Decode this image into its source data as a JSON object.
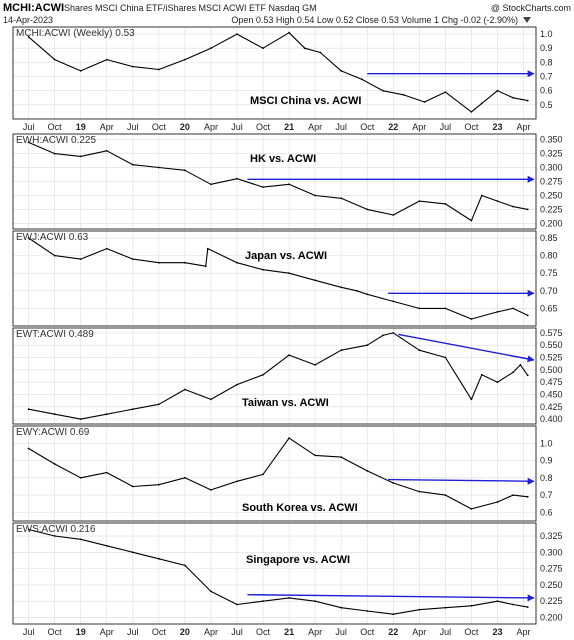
{
  "header": {
    "symbol": "MCHI:ACWI",
    "description": "iShares MSCI China ETF/iShares MSCI ACWI ETF  Nasdaq GM",
    "credit": "@ StockCharts.com",
    "date": "14-Apr-2023",
    "quote": "Open 0.53  High 0.54  Low 0.52  Close 0.53  Volume 1  Chg -0.02 (-2.90%)",
    "quote_icon": "chg-down-triangle-icon"
  },
  "colors": {
    "price_line": "#000000",
    "arrow": "#1f1fd8",
    "grid": "#dcdcdc",
    "frame": "#000000"
  },
  "chart_data": [
    {
      "type": "line",
      "label": "MCHI:ACWI (Weekly) 0.53",
      "annotation": "MSCI China vs. ACWI",
      "ylim": [
        0.4,
        1.05
      ],
      "yticks": [
        "0.5",
        "0.6",
        "0.7",
        "0.8",
        "0.9",
        "1.0"
      ],
      "xticks": [
        "Jul",
        "Oct",
        "19",
        "Apr",
        "Jul",
        "Oct",
        "20",
        "Apr",
        "Jul",
        "Oct",
        "21",
        "Apr",
        "Jul",
        "Oct",
        "22",
        "Apr",
        "Jul",
        "Oct",
        "23",
        "Apr"
      ],
      "x": [
        2018.5,
        2018.75,
        2019.0,
        2019.25,
        2019.5,
        2019.75,
        2020.0,
        2020.25,
        2020.5,
        2020.75,
        2021.0,
        2021.15,
        2021.3,
        2021.5,
        2021.7,
        2021.9,
        2022.1,
        2022.3,
        2022.5,
        2022.75,
        2022.85,
        2023.0,
        2023.15,
        2023.29
      ],
      "values": [
        0.98,
        0.82,
        0.74,
        0.82,
        0.77,
        0.75,
        0.82,
        0.9,
        1.0,
        0.9,
        1.01,
        0.9,
        0.87,
        0.74,
        0.68,
        0.6,
        0.57,
        0.52,
        0.59,
        0.45,
        0.51,
        0.6,
        0.55,
        0.53
      ],
      "trend_arrow": {
        "from": [
          2021.75,
          0.72
        ],
        "to": [
          2023.35,
          0.72
        ]
      }
    },
    {
      "type": "line",
      "label": "EWH:ACWI 0.225",
      "annotation": "HK vs. ACWI",
      "ylim": [
        0.19,
        0.36
      ],
      "yticks": [
        "0.200",
        "0.225",
        "0.250",
        "0.275",
        "0.300",
        "0.325",
        "0.350"
      ],
      "xticks": [],
      "x": [
        2018.5,
        2018.75,
        2019.0,
        2019.25,
        2019.5,
        2019.75,
        2020.0,
        2020.25,
        2020.5,
        2020.75,
        2021.0,
        2021.25,
        2021.5,
        2021.75,
        2022.0,
        2022.25,
        2022.5,
        2022.75,
        2022.85,
        2023.0,
        2023.15,
        2023.29
      ],
      "values": [
        0.345,
        0.325,
        0.32,
        0.33,
        0.305,
        0.3,
        0.295,
        0.27,
        0.28,
        0.265,
        0.27,
        0.25,
        0.245,
        0.225,
        0.215,
        0.24,
        0.235,
        0.205,
        0.25,
        0.24,
        0.23,
        0.225
      ],
      "trend_arrow": {
        "from": [
          2020.6,
          0.279
        ],
        "to": [
          2023.35,
          0.279
        ]
      }
    },
    {
      "type": "line",
      "label": "EWJ:ACWI 0.63",
      "annotation": "Japan vs. ACWI",
      "ylim": [
        0.6,
        0.87
      ],
      "yticks": [
        "0.65",
        "0.70",
        "0.75",
        "0.80",
        "0.85"
      ],
      "xticks": [],
      "x": [
        2018.5,
        2018.75,
        2019.0,
        2019.25,
        2019.5,
        2019.75,
        2020.0,
        2020.2,
        2020.22,
        2020.5,
        2020.75,
        2021.0,
        2021.25,
        2021.5,
        2021.65,
        2021.75,
        2022.0,
        2022.25,
        2022.5,
        2022.75,
        2023.0,
        2023.15,
        2023.29
      ],
      "values": [
        0.85,
        0.8,
        0.79,
        0.82,
        0.79,
        0.78,
        0.78,
        0.77,
        0.82,
        0.78,
        0.76,
        0.75,
        0.73,
        0.71,
        0.7,
        0.69,
        0.67,
        0.65,
        0.65,
        0.62,
        0.64,
        0.65,
        0.63
      ],
      "trend_arrow": {
        "from": [
          2021.95,
          0.693
        ],
        "to": [
          2023.35,
          0.693
        ]
      }
    },
    {
      "type": "line",
      "label": "EWT:ACWI 0.489",
      "annotation": "Taiwan vs. ACWI",
      "ylim": [
        0.39,
        0.585
      ],
      "yticks": [
        "0.400",
        "0.425",
        "0.450",
        "0.475",
        "0.500",
        "0.525",
        "0.550",
        "0.575"
      ],
      "xticks": [],
      "x": [
        2018.5,
        2018.75,
        2019.0,
        2019.25,
        2019.5,
        2019.75,
        2020.0,
        2020.25,
        2020.5,
        2020.75,
        2021.0,
        2021.25,
        2021.5,
        2021.75,
        2021.9,
        2022.0,
        2022.25,
        2022.5,
        2022.75,
        2022.85,
        2023.0,
        2023.15,
        2023.22,
        2023.29
      ],
      "values": [
        0.42,
        0.41,
        0.4,
        0.41,
        0.42,
        0.43,
        0.46,
        0.44,
        0.47,
        0.49,
        0.53,
        0.51,
        0.54,
        0.55,
        0.57,
        0.575,
        0.54,
        0.525,
        0.44,
        0.49,
        0.475,
        0.495,
        0.51,
        0.489
      ],
      "trend_arrow": {
        "from": [
          2022.05,
          0.572
        ],
        "to": [
          2023.35,
          0.52
        ]
      }
    },
    {
      "type": "line",
      "label": "EWY:ACWI 0.69",
      "annotation": "South Korea vs. ACWI",
      "ylim": [
        0.55,
        1.1
      ],
      "yticks": [
        "0.6",
        "0.7",
        "0.8",
        "0.9",
        "1.0"
      ],
      "xticks": [],
      "x": [
        2018.5,
        2018.75,
        2019.0,
        2019.25,
        2019.5,
        2019.75,
        2020.0,
        2020.25,
        2020.5,
        2020.75,
        2021.0,
        2021.25,
        2021.5,
        2021.75,
        2022.0,
        2022.25,
        2022.5,
        2022.75,
        2023.0,
        2023.15,
        2023.29
      ],
      "values": [
        0.97,
        0.88,
        0.8,
        0.83,
        0.75,
        0.76,
        0.8,
        0.73,
        0.78,
        0.82,
        1.03,
        0.93,
        0.92,
        0.84,
        0.77,
        0.72,
        0.7,
        0.62,
        0.66,
        0.7,
        0.69
      ],
      "trend_arrow": {
        "from": [
          2021.95,
          0.79
        ],
        "to": [
          2023.35,
          0.78
        ]
      }
    },
    {
      "type": "line",
      "label": "EWS:ACWI 0.216",
      "annotation": "Singapore vs. ACWI",
      "ylim": [
        0.19,
        0.345
      ],
      "yticks": [
        "0.200",
        "0.225",
        "0.250",
        "0.275",
        "0.300",
        "0.325"
      ],
      "xticks": [
        "Jul",
        "Oct",
        "19",
        "Apr",
        "Jul",
        "Oct",
        "20",
        "Apr",
        "Jul",
        "Oct",
        "21",
        "Apr",
        "Jul",
        "Oct",
        "22",
        "Apr",
        "Jul",
        "Oct",
        "23",
        "Apr"
      ],
      "x": [
        2018.5,
        2018.75,
        2019.0,
        2019.25,
        2019.5,
        2019.75,
        2020.0,
        2020.25,
        2020.5,
        2020.75,
        2021.0,
        2021.25,
        2021.5,
        2021.75,
        2022.0,
        2022.25,
        2022.5,
        2022.75,
        2023.0,
        2023.15,
        2023.29
      ],
      "values": [
        0.335,
        0.325,
        0.32,
        0.31,
        0.3,
        0.29,
        0.28,
        0.24,
        0.22,
        0.225,
        0.23,
        0.225,
        0.215,
        0.21,
        0.205,
        0.212,
        0.215,
        0.218,
        0.225,
        0.22,
        0.216
      ],
      "trend_arrow": {
        "from": [
          2020.6,
          0.235
        ],
        "to": [
          2023.35,
          0.23
        ]
      }
    }
  ]
}
